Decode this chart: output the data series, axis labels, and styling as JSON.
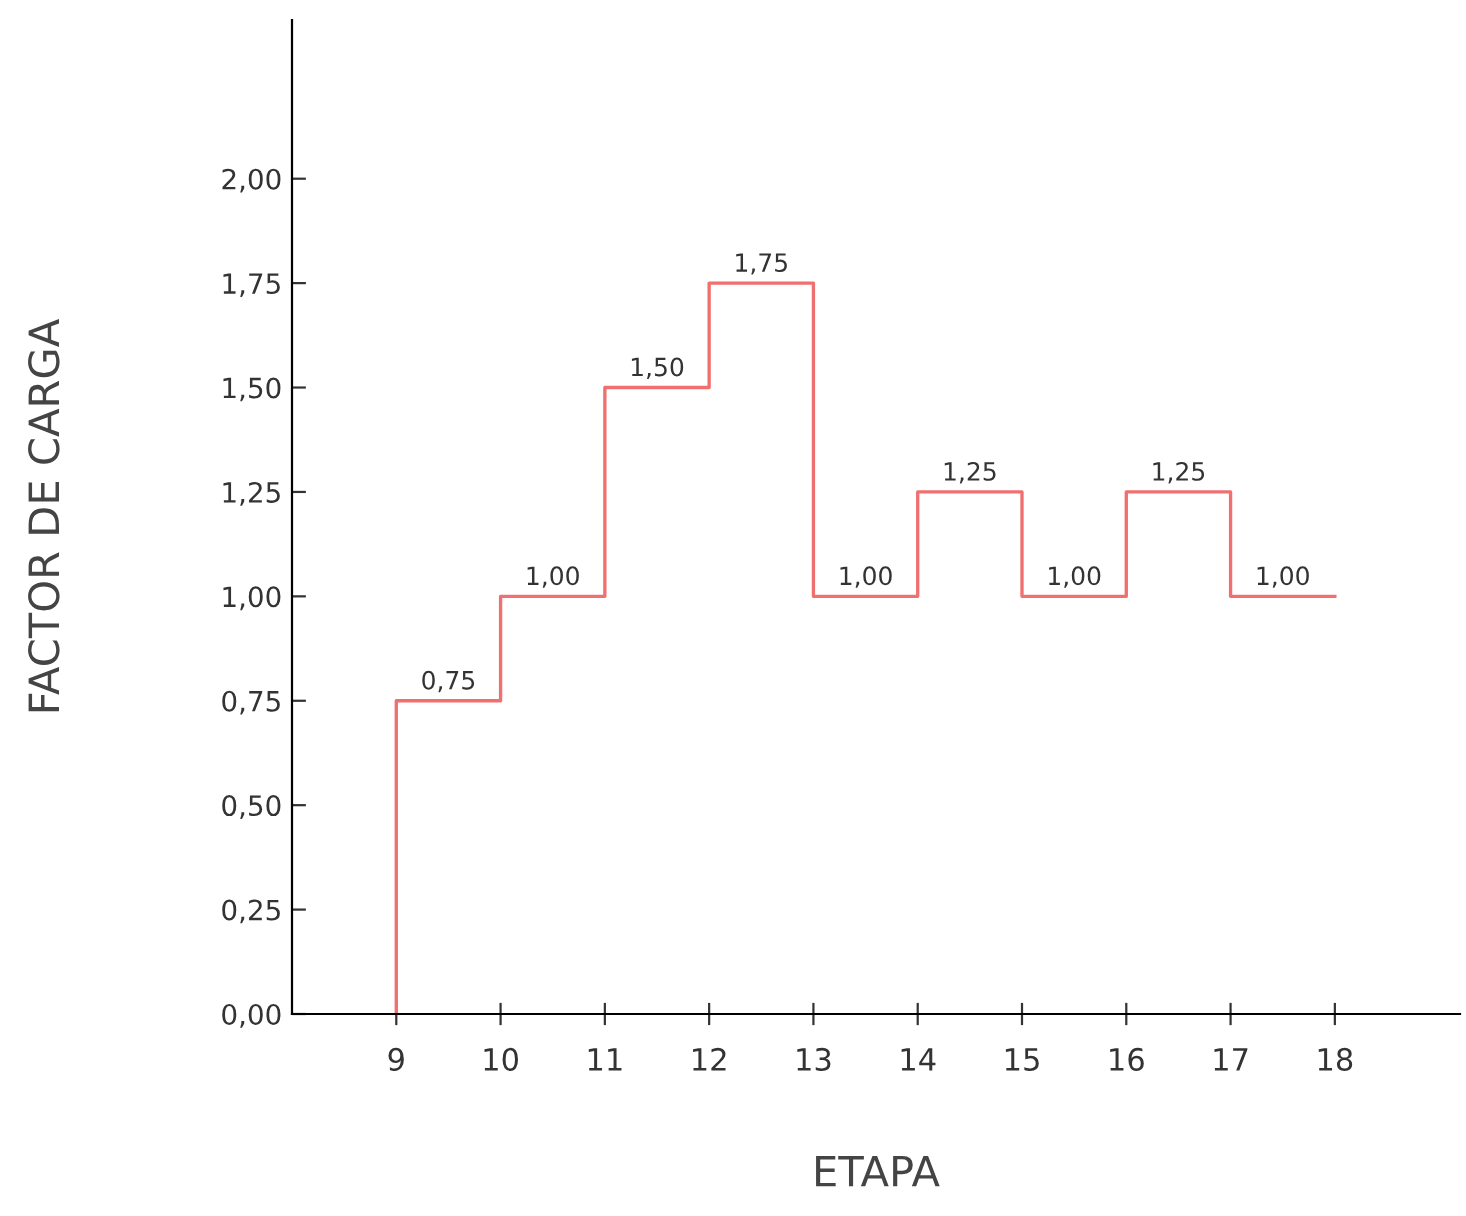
{
  "chart_data": {
    "type": "step",
    "xlabel": "ETAPA",
    "ylabel": "FACTOR DE CARGA",
    "x": [
      9,
      9,
      10,
      11,
      12,
      13,
      14,
      15,
      16,
      17,
      18
    ],
    "series": [
      {
        "color": "#f07070",
        "values": [
          0,
          0.75,
          1.0,
          1.5,
          1.75,
          1.0,
          1.25,
          1.0,
          1.25,
          1.0,
          1.0
        ],
        "value_labels": [
          null,
          "0,75",
          "1,00",
          "1,50",
          "1,75",
          "1,00",
          "1,25",
          "1,00",
          "1,25",
          "1,00",
          null
        ]
      }
    ],
    "xlim": [
      8,
      19.2
    ],
    "xticks": [
      9,
      10,
      11,
      12,
      13,
      14,
      15,
      16,
      17,
      18
    ],
    "ylim": [
      0,
      2.38
    ],
    "yticks": [
      {
        "value": 0,
        "label": "0,00"
      },
      {
        "value": 0.25,
        "label": "0,25"
      },
      {
        "value": 0.5,
        "label": "0,50"
      },
      {
        "value": 0.75,
        "label": "0,75"
      },
      {
        "value": 1.0,
        "label": "1,00"
      },
      {
        "value": 1.25,
        "label": "1,25"
      },
      {
        "value": 1.5,
        "label": "1,50"
      },
      {
        "value": 1.75,
        "label": "1,75"
      },
      {
        "value": 2.0,
        "label": "2,00"
      }
    ],
    "grid": false,
    "legend": false
  }
}
